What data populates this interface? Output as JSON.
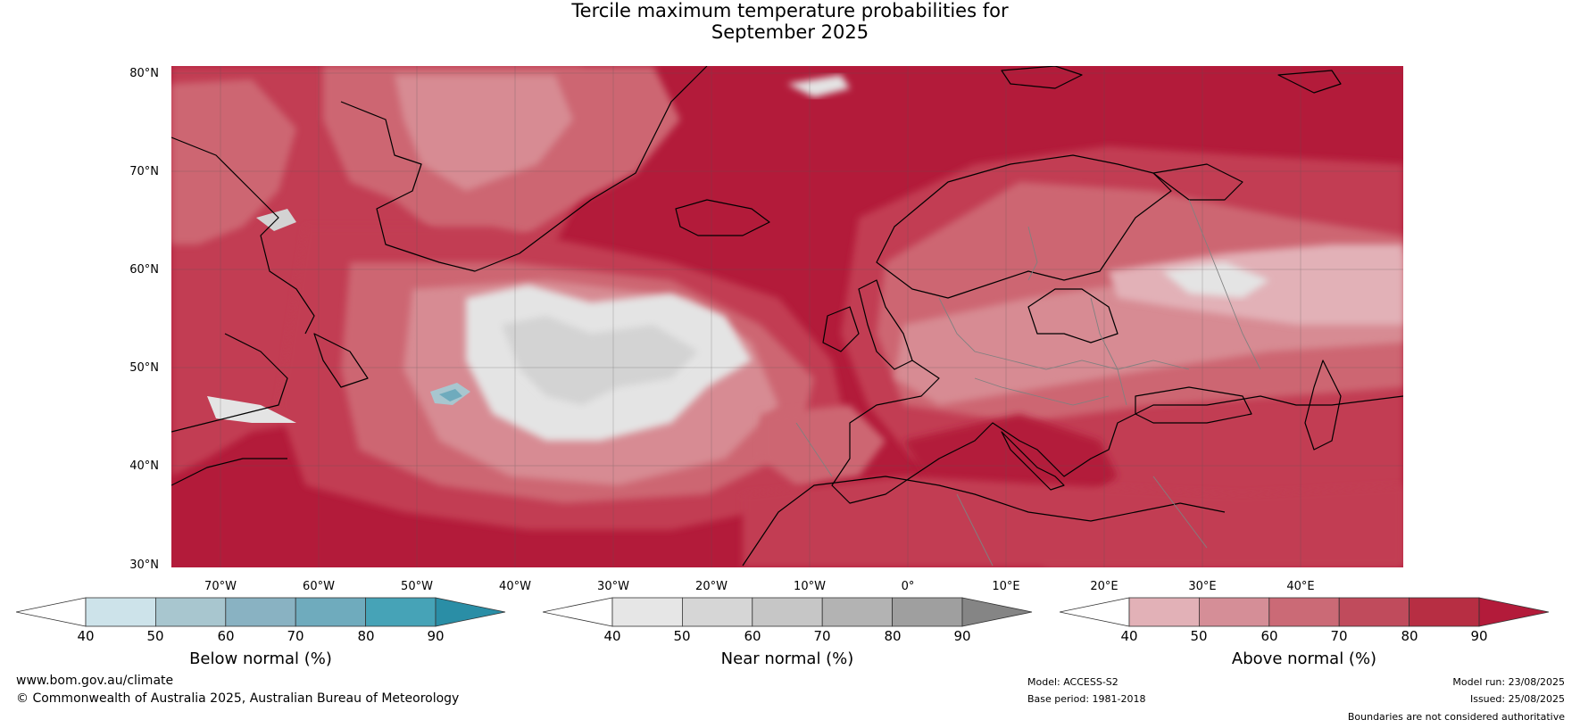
{
  "title": {
    "line1": "Tercile maximum temperature probabilities for",
    "line2": "September 2025"
  },
  "map": {
    "region": "North Atlantic and Europe",
    "lat_labels": [
      "80°N",
      "70°N",
      "60°N",
      "50°N",
      "40°N",
      "30°N"
    ],
    "lon_labels": [
      "70°W",
      "60°W",
      "50°W",
      "40°W",
      "30°W",
      "20°W",
      "10°W",
      "0°",
      "10°E",
      "20°E",
      "30°E",
      "40°E"
    ],
    "colors": {
      "above_90": "#b31b3a",
      "above_80": "#c23d52",
      "above_70": "#cd6672",
      "above_60": "#d78b93",
      "above_50": "#e2b1b7",
      "near_50": "#e4e4e4",
      "near_60": "#d3d3d3",
      "below_60": "#a8c6cf",
      "below_70": "#6fabbd",
      "coastline": "#000000",
      "borders": "#808080"
    }
  },
  "legends": [
    {
      "label": "Below normal (%)",
      "ticks": [
        "40",
        "50",
        "60",
        "70",
        "80",
        "90"
      ],
      "colors": [
        "#ffffff",
        "#cde3ea",
        "#a8c6cf",
        "#89b2c2",
        "#6fabbd",
        "#46a3b7",
        "#2a8ea6"
      ]
    },
    {
      "label": "Near normal (%)",
      "ticks": [
        "40",
        "50",
        "60",
        "70",
        "80",
        "90"
      ],
      "colors": [
        "#ffffff",
        "#e6e6e6",
        "#d6d6d6",
        "#c6c6c6",
        "#b3b3b3",
        "#9f9f9f",
        "#858585"
      ]
    },
    {
      "label": "Above normal (%)",
      "ticks": [
        "40",
        "50",
        "60",
        "70",
        "80",
        "90"
      ],
      "colors": [
        "#ffffff",
        "#e2b1b7",
        "#d58e97",
        "#cb6a76",
        "#c04b5c",
        "#b72e43",
        "#b31b3a"
      ]
    }
  ],
  "footer": {
    "website": "www.bom.gov.au/climate",
    "copyright": "© Commonwealth of Australia 2025, Australian Bureau of Meteorology",
    "model": "Model: ACCESS-S2",
    "base_period": "Base period: 1981-2018",
    "model_run": "Model run: 23/08/2025",
    "issued": "Issued: 25/08/2025",
    "disclaimer": "Boundaries are not considered authoritative"
  }
}
